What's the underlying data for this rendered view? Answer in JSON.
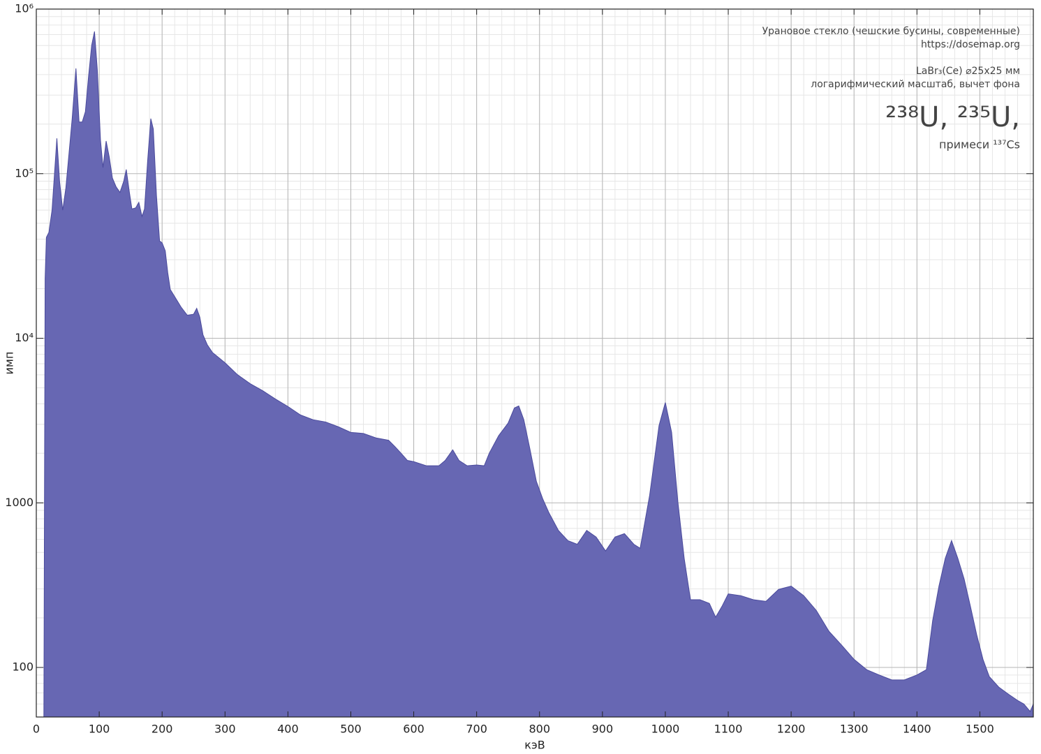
{
  "chart_data": {
    "type": "area",
    "annotations": [
      "Урановое стекло (чешские бусины, современные)",
      "https://dosemap.org",
      "LaBr₃(Ce) ⌀25x25 мм",
      "логарифмический масштаб, вычет фона",
      "²³⁸U, ²³⁵U,",
      "примеси ¹³⁷Cs"
    ],
    "xlabel": "кэВ",
    "ylabel": "имп",
    "xlim": [
      0,
      1585
    ],
    "ylim": [
      50,
      1000000
    ],
    "log_y": true,
    "grid": true,
    "minor_grid": true,
    "xticks": [
      0,
      100,
      200,
      300,
      400,
      500,
      600,
      700,
      800,
      900,
      1000,
      1100,
      1200,
      1300,
      1400,
      1500
    ],
    "yticks": [
      100,
      1000,
      {
        "value": 10000,
        "label": "10⁴"
      },
      {
        "value": 100000,
        "label": "10⁵"
      },
      {
        "value": 1000000,
        "label": "10⁶"
      }
    ],
    "color": "#6767b3",
    "edge_color": "#4a4a9c",
    "x": [
      12,
      14,
      16,
      20,
      25,
      32.7,
      37,
      42,
      47,
      52,
      57,
      63,
      68,
      73,
      78,
      83,
      88,
      92.5,
      97,
      102,
      106,
      111,
      116,
      121,
      127,
      133,
      139,
      143,
      148,
      152,
      158,
      163,
      168,
      172,
      177,
      182,
      186,
      191,
      196,
      200,
      205,
      209,
      213,
      220,
      230,
      240,
      250,
      255,
      260,
      265,
      272,
      280,
      300,
      320,
      340,
      360,
      380,
      400,
      420,
      440,
      460,
      480,
      500,
      520,
      540,
      560,
      570,
      580,
      590,
      600,
      620,
      640,
      650,
      662,
      672,
      685,
      700,
      712,
      720,
      735,
      750,
      760,
      767,
      775,
      785,
      795,
      805,
      815,
      830,
      845,
      860,
      875,
      890,
      905,
      920,
      935,
      950,
      960,
      975,
      990,
      1000,
      1010,
      1020,
      1030,
      1040,
      1055,
      1070,
      1080,
      1090,
      1100,
      1120,
      1140,
      1160,
      1180,
      1200,
      1220,
      1240,
      1260,
      1280,
      1300,
      1320,
      1340,
      1360,
      1380,
      1400,
      1415,
      1425,
      1435,
      1445,
      1455,
      1465,
      1475,
      1485,
      1495,
      1505,
      1515,
      1530,
      1545,
      1560,
      1570,
      1580,
      1585
    ],
    "values": [
      50,
      23000,
      41000,
      44000,
      60000,
      164000,
      90000,
      60000,
      82000,
      133000,
      216000,
      436000,
      206000,
      206000,
      238000,
      388000,
      602000,
      731000,
      428000,
      161000,
      109000,
      158000,
      126000,
      94000,
      83000,
      77000,
      90000,
      106000,
      77000,
      61000,
      62000,
      67000,
      55000,
      61000,
      120000,
      216000,
      187000,
      74000,
      39000,
      38000,
      34000,
      25000,
      19800,
      17900,
      15500,
      13800,
      14000,
      15200,
      13400,
      10500,
      9100,
      8200,
      7100,
      6000,
      5300,
      4800,
      4280,
      3850,
      3420,
      3200,
      3100,
      2900,
      2680,
      2640,
      2480,
      2400,
      2200,
      2000,
      1810,
      1780,
      1680,
      1680,
      1810,
      2100,
      1810,
      1680,
      1700,
      1680,
      2000,
      2560,
      3050,
      3770,
      3880,
      3200,
      2100,
      1350,
      1060,
      870,
      680,
      590,
      560,
      680,
      620,
      510,
      620,
      650,
      560,
      530,
      1110,
      2950,
      4070,
      2680,
      1010,
      460,
      258,
      258,
      245,
      202,
      235,
      280,
      273,
      258,
      252,
      298,
      312,
      273,
      222,
      166,
      137,
      112,
      97,
      90,
      84,
      84,
      90,
      97,
      193,
      312,
      460,
      590,
      460,
      345,
      235,
      158,
      112,
      88,
      76,
      69,
      63,
      60,
      54,
      60
    ]
  }
}
